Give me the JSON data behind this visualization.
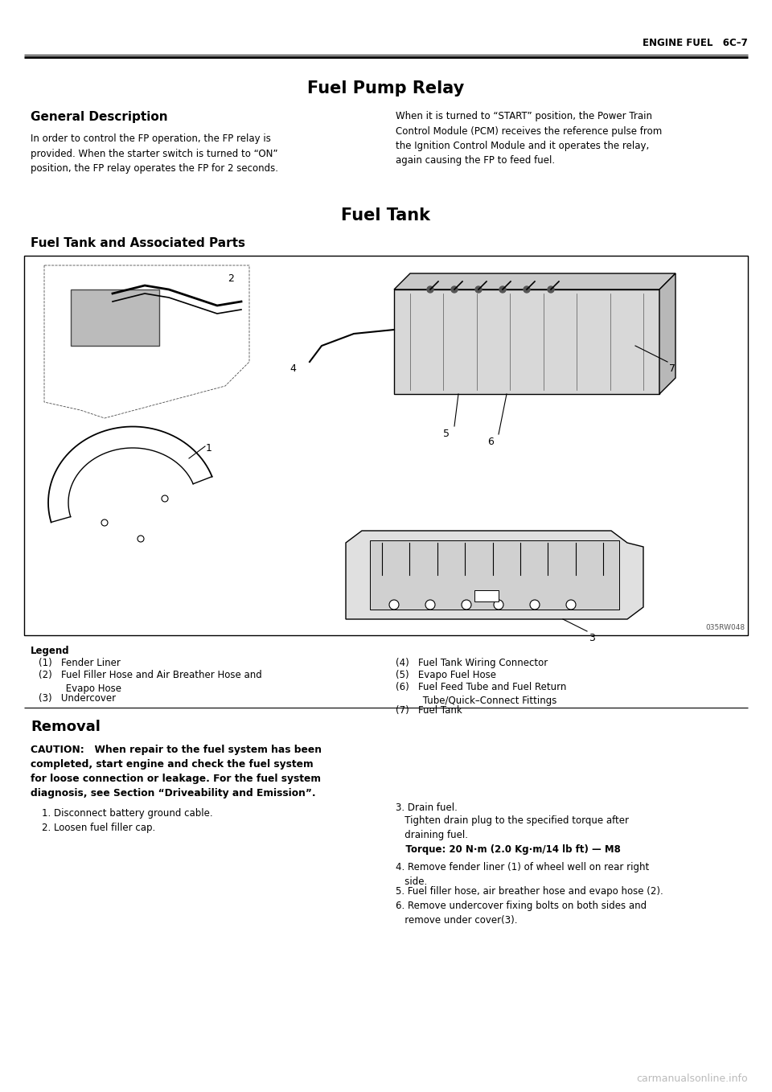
{
  "page_header_right": "ENGINE FUEL   6C–7",
  "section_title_1": "Fuel Pump Relay",
  "subsection_title_1": "General Description",
  "body_text_left_1": "In order to control the FP operation, the FP relay is\nprovided. When the starter switch is turned to “ON”\nposition, the FP relay operates the FP for 2 seconds.",
  "body_text_right_1": "When it is turned to “START” position, the Power Train\nControl Module (PCM) receives the reference pulse from\nthe Ignition Control Module and it operates the relay,\nagain causing the FP to feed fuel.",
  "section_title_2": "Fuel Tank",
  "subsection_title_2": "Fuel Tank and Associated Parts",
  "diagram_label": "035RW048",
  "legend_title": "Legend",
  "legend_col1": [
    "(1)   Fender Liner",
    "(2)   Fuel Filler Hose and Air Breather Hose and\n         Evapo Hose",
    "(3)   Undercover"
  ],
  "legend_col2": [
    "(4)   Fuel Tank Wiring Connector",
    "(5)   Evapo Fuel Hose",
    "(6)   Fuel Feed Tube and Fuel Return\n         Tube/Quick–Connect Fittings",
    "(7)   Fuel Tank"
  ],
  "removal_title": "Removal",
  "caution_bold": "CAUTION:",
  "caution_rest": "   When repair to the fuel system has been\ncompleted, start engine and check the fuel system\nfor loose connection or leakage. For the fuel system\ndiagnosis, see Section “Driveability and Emission”.",
  "step1": "1. Disconnect battery ground cable.",
  "step2": "2. Loosen fuel filler cap.",
  "step3_a": "3. Drain fuel.",
  "step3_b": "   Tighten drain plug to the specified torque after\n   draining fuel.",
  "torque": "   Torque: 20 N·m (2.0 Kg·m/14 lb ft) — M8",
  "step4": "4. Remove fender liner (1) of wheel well on rear right\n   side.",
  "step5": "5. Fuel filler hose, air breather hose and evapo hose (2).",
  "step6": "6. Remove undercover fixing bolts on both sides and\n   remove under cover(3).",
  "watermark": "carmanualsonline.info",
  "bg_color": "#ffffff"
}
